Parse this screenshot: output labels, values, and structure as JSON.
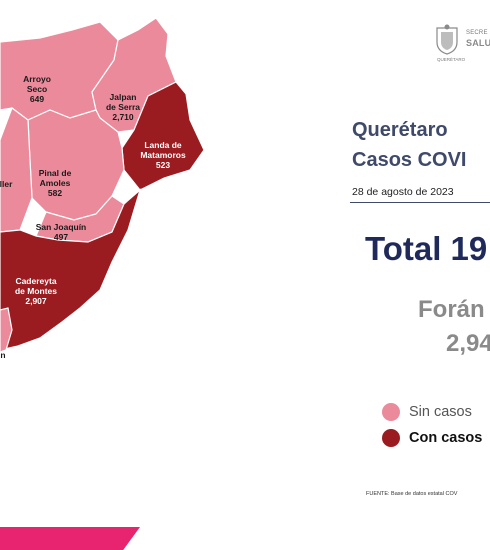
{
  "colors": {
    "sin_casos": "#ea8a9a",
    "con_casos": "#9b1c20",
    "title": "#3f4a6b",
    "total": "#1f2a5a",
    "accent_stripe": "#e8236f"
  },
  "logo": {
    "line1": "SECRE",
    "line2": "SALU",
    "sub": "QUERÉTARO"
  },
  "title": {
    "line1": "Querétaro",
    "line2": "Casos COVI"
  },
  "date": "28 de agosto de 2023",
  "total": "Total 19",
  "foraneo": {
    "label": "Forán",
    "value": "2,94"
  },
  "legend": [
    {
      "label": "Sin casos",
      "color": "#ea8a9a"
    },
    {
      "label": "Con casos",
      "color": "#9b1c20"
    }
  ],
  "fuente": "FUENTE: Base de datos estatal COV",
  "municipalities": [
    {
      "name": [
        "Arroyo",
        "Seco"
      ],
      "value": "649",
      "status": "sin_casos"
    },
    {
      "name": [
        "Jalpan",
        "de Serra"
      ],
      "value": "2,710",
      "status": "sin_casos"
    },
    {
      "name": [
        "Landa de",
        "Matamoros"
      ],
      "value": "523",
      "status": "con_casos"
    },
    {
      "name": [
        "Pinal de",
        "Amoles"
      ],
      "value": "582",
      "status": "sin_casos"
    },
    {
      "name": [
        "San Joaquín"
      ],
      "value": "497",
      "status": "sin_casos"
    },
    {
      "name": [
        "Cadereyta",
        "de Montes"
      ],
      "value": "2,907",
      "status": "con_casos"
    },
    {
      "name": [
        "ller"
      ],
      "value": "",
      "status": "sin_casos"
    },
    {
      "name": [
        "n"
      ],
      "value": "",
      "status": "sin_casos"
    }
  ]
}
